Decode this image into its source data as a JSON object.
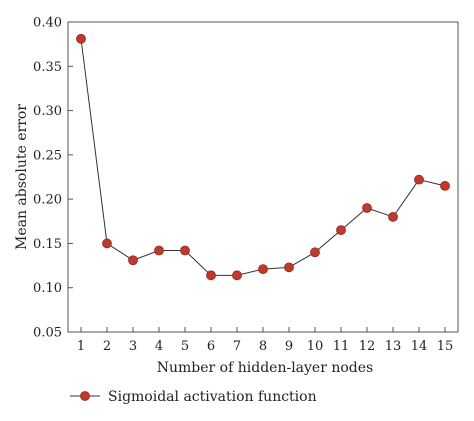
{
  "chart_data": {
    "type": "line",
    "xlabel": "Number of hidden-layer nodes",
    "ylabel": "Mean absolute error",
    "xlim": [
      0.5,
      15.5
    ],
    "ylim": [
      0.05,
      0.4
    ],
    "x_ticks": [
      "1",
      "2",
      "3",
      "4",
      "5",
      "6",
      "7",
      "8",
      "9",
      "10",
      "11",
      "12",
      "13",
      "14",
      "15"
    ],
    "y_ticks": [
      "0.05",
      "0.10",
      "0.15",
      "0.20",
      "0.25",
      "0.30",
      "0.35",
      "0.40"
    ],
    "grid": false,
    "legend_position": "bottom-left",
    "series": [
      {
        "name": "Sigmoidal activation function",
        "color": "#c0392b",
        "line_color": "#333333",
        "x": [
          1,
          2,
          3,
          4,
          5,
          6,
          7,
          8,
          9,
          10,
          11,
          12,
          13,
          14,
          15
        ],
        "y": [
          0.381,
          0.15,
          0.131,
          0.142,
          0.142,
          0.114,
          0.114,
          0.121,
          0.123,
          0.14,
          0.165,
          0.19,
          0.18,
          0.222,
          0.215
        ]
      }
    ]
  }
}
